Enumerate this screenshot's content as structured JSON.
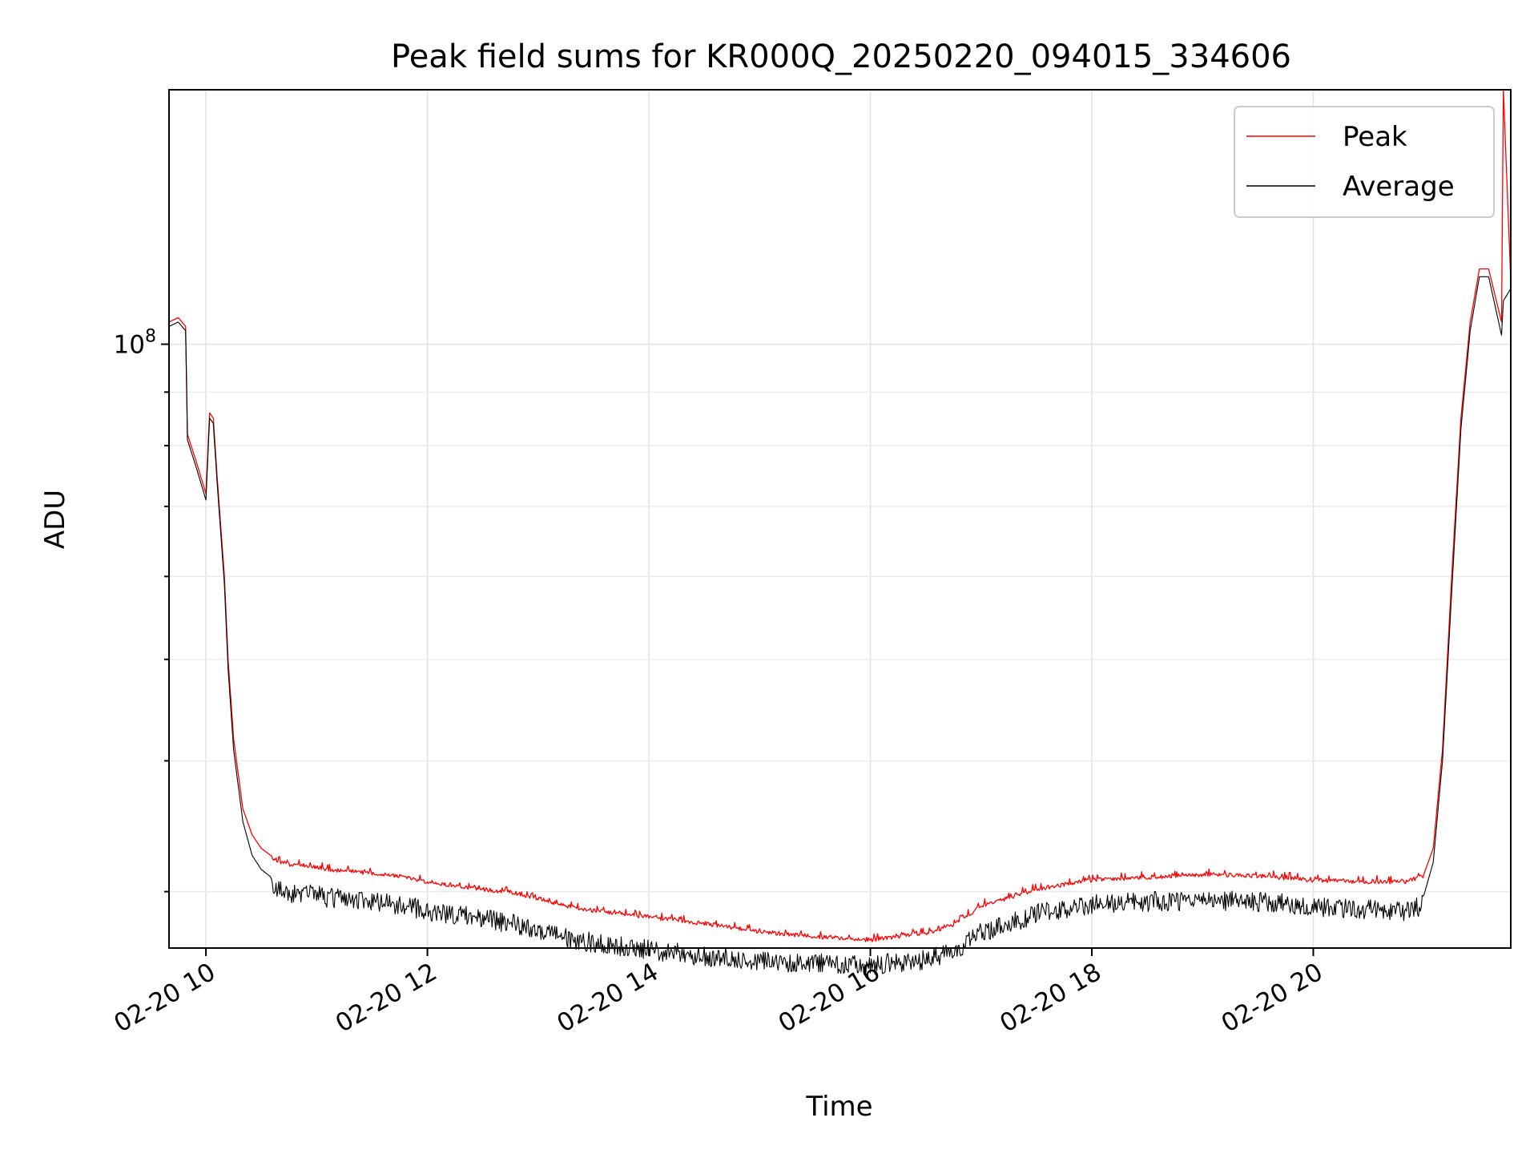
{
  "chart_data": {
    "type": "line",
    "title": "Peak field sums for KR000Q_20250220_094015_334606",
    "xlabel": "Time",
    "ylabel": "ADU",
    "x_scale": "time",
    "y_scale": "log",
    "xlim": [
      "2025-02-20 09:40",
      "2025-02-20 21:47"
    ],
    "ylim": [
      26500000,
      175000000
    ],
    "x_ticks": [
      {
        "value": "2025-02-20 10:00",
        "label": "02-20 10"
      },
      {
        "value": "2025-02-20 12:00",
        "label": "02-20 12"
      },
      {
        "value": "2025-02-20 14:00",
        "label": "02-20 14"
      },
      {
        "value": "2025-02-20 16:00",
        "label": "02-20 16"
      },
      {
        "value": "2025-02-20 18:00",
        "label": "02-20 18"
      },
      {
        "value": "2025-02-20 20:00",
        "label": "02-20 20"
      }
    ],
    "y_ticks": [
      {
        "value": 100000000,
        "label": "10",
        "exponent": "8"
      }
    ],
    "y_minor_ticks": [
      30000000,
      40000000,
      50000000,
      60000000,
      70000000,
      80000000,
      90000000
    ],
    "grid": true,
    "legend_position": "top-right",
    "series": [
      {
        "name": "Peak",
        "color": "#ff0000",
        "x": [
          "2025-02-20 09:40",
          "2025-02-20 09:45",
          "2025-02-20 09:49",
          "2025-02-20 09:50",
          "2025-02-20 09:51",
          "2025-02-20 09:55",
          "2025-02-20 10:00",
          "2025-02-20 10:02",
          "2025-02-20 10:04",
          "2025-02-20 10:06",
          "2025-02-20 10:10",
          "2025-02-20 10:12",
          "2025-02-20 10:15",
          "2025-02-20 10:20",
          "2025-02-20 10:25",
          "2025-02-20 10:30",
          "2025-02-20 10:35",
          "2025-02-20 10:40",
          "2025-02-20 10:45",
          "2025-02-20 10:50",
          "2025-02-20 11:00",
          "2025-02-20 11:10",
          "2025-02-20 11:20",
          "2025-02-20 11:30",
          "2025-02-20 11:45",
          "2025-02-20 12:00",
          "2025-02-20 12:30",
          "2025-02-20 12:45",
          "2025-02-20 13:00",
          "2025-02-20 13:15",
          "2025-02-20 13:30",
          "2025-02-20 14:00",
          "2025-02-20 14:30",
          "2025-02-20 15:00",
          "2025-02-20 15:30",
          "2025-02-20 16:00",
          "2025-02-20 16:30",
          "2025-02-20 16:45",
          "2025-02-20 17:00",
          "2025-02-20 17:30",
          "2025-02-20 18:00",
          "2025-02-20 18:30",
          "2025-02-20 19:00",
          "2025-02-20 19:30",
          "2025-02-20 20:00",
          "2025-02-20 20:30",
          "2025-02-20 20:50",
          "2025-02-20 21:00",
          "2025-02-20 21:05",
          "2025-02-20 21:10",
          "2025-02-20 21:15",
          "2025-02-20 21:20",
          "2025-02-20 21:25",
          "2025-02-20 21:30",
          "2025-02-20 21:35",
          "2025-02-20 21:42",
          "2025-02-20 21:43",
          "2025-02-20 21:47"
        ],
        "values": [
          105000000,
          106000000,
          104000000,
          82000000,
          81000000,
          77000000,
          72000000,
          86000000,
          85000000,
          75000000,
          60000000,
          50000000,
          42000000,
          36000000,
          34000000,
          33000000,
          32500000,
          32200000,
          32000000,
          32000000,
          31800000,
          31600000,
          31500000,
          31400000,
          31200000,
          30800000,
          30300000,
          30100000,
          29700000,
          29200000,
          28900000,
          28500000,
          28100000,
          27600000,
          27300000,
          27100000,
          27500000,
          28000000,
          29200000,
          30300000,
          30900000,
          31100000,
          31300000,
          31200000,
          30900000,
          30800000,
          30800000,
          31200000,
          33000000,
          41000000,
          60000000,
          85000000,
          105000000,
          118000000,
          118000000,
          105000000,
          175000000,
          115000000
        ]
      },
      {
        "name": "Average",
        "color": "#000000",
        "x": [
          "2025-02-20 09:40",
          "2025-02-20 09:45",
          "2025-02-20 09:49",
          "2025-02-20 09:50",
          "2025-02-20 09:51",
          "2025-02-20 09:55",
          "2025-02-20 10:00",
          "2025-02-20 10:02",
          "2025-02-20 10:04",
          "2025-02-20 10:06",
          "2025-02-20 10:10",
          "2025-02-20 10:12",
          "2025-02-20 10:15",
          "2025-02-20 10:20",
          "2025-02-20 10:25",
          "2025-02-20 10:30",
          "2025-02-20 10:35",
          "2025-02-20 10:40",
          "2025-02-20 10:45",
          "2025-02-20 10:50",
          "2025-02-20 11:00",
          "2025-02-20 11:10",
          "2025-02-20 11:20",
          "2025-02-20 11:30",
          "2025-02-20 11:45",
          "2025-02-20 12:00",
          "2025-02-20 12:30",
          "2025-02-20 12:45",
          "2025-02-20 13:00",
          "2025-02-20 13:15",
          "2025-02-20 13:30",
          "2025-02-20 14:00",
          "2025-02-20 14:30",
          "2025-02-20 15:00",
          "2025-02-20 15:30",
          "2025-02-20 16:00",
          "2025-02-20 16:30",
          "2025-02-20 16:45",
          "2025-02-20 17:00",
          "2025-02-20 17:30",
          "2025-02-20 18:00",
          "2025-02-20 18:30",
          "2025-02-20 19:00",
          "2025-02-20 19:30",
          "2025-02-20 20:00",
          "2025-02-20 20:30",
          "2025-02-20 20:50",
          "2025-02-20 21:00",
          "2025-02-20 21:05",
          "2025-02-20 21:10",
          "2025-02-20 21:15",
          "2025-02-20 21:20",
          "2025-02-20 21:25",
          "2025-02-20 21:30",
          "2025-02-20 21:35",
          "2025-02-20 21:42",
          "2025-02-20 21:43",
          "2025-02-20 21:47"
        ],
        "values": [
          104000000,
          105000000,
          103000000,
          81000000,
          80000000,
          76000000,
          71000000,
          85000000,
          84000000,
          74000000,
          59000000,
          49000000,
          41000000,
          35000000,
          32500000,
          31500000,
          31000000,
          30800000,
          30600000,
          30600000,
          30400000,
          30200000,
          30100000,
          30000000,
          29800000,
          29400000,
          28900000,
          28600000,
          28200000,
          27700000,
          27400000,
          27000000,
          26600000,
          26300000,
          26200000,
          26100000,
          26400000,
          26900000,
          28000000,
          29200000,
          29800000,
          30000000,
          30100000,
          30000000,
          29700000,
          29500000,
          29400000,
          29800000,
          32000000,
          40000000,
          58000000,
          83000000,
          103000000,
          116000000,
          116000000,
          102000000,
          110000000,
          113000000
        ]
      }
    ],
    "legend": [
      {
        "name": "Peak",
        "color": "#ff0000"
      },
      {
        "name": "Average",
        "color": "#000000"
      }
    ]
  }
}
